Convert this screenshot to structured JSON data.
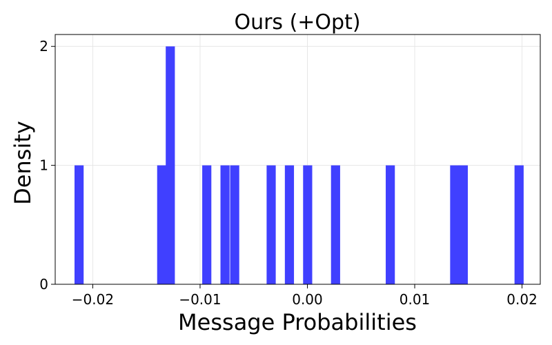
{
  "chart_data": {
    "type": "bar",
    "title": "Ours (+Opt)",
    "xlabel": "Message Probabilities",
    "ylabel": "Density",
    "xlim": [
      -0.0235,
      0.0217
    ],
    "ylim": [
      0,
      2.1
    ],
    "x_ticks": [
      "−0.02",
      "−0.01",
      "0.00",
      "0.01",
      "0.02"
    ],
    "x_tick_values": [
      -0.02,
      -0.01,
      0.0,
      0.01,
      0.02
    ],
    "y_ticks": [
      "0",
      "1",
      "2"
    ],
    "y_tick_values": [
      0,
      1,
      2
    ],
    "grid": true,
    "bar_color": "#4040ff",
    "bin_width": 0.00085,
    "bars": [
      {
        "x": -0.0217,
        "height": 1
      },
      {
        "x": -0.014,
        "height": 1
      },
      {
        "x": -0.0132,
        "height": 2
      },
      {
        "x": -0.0098,
        "height": 1
      },
      {
        "x": -0.0081,
        "height": 1
      },
      {
        "x": -0.0072,
        "height": 1
      },
      {
        "x": -0.0038,
        "height": 1
      },
      {
        "x": -0.0021,
        "height": 1
      },
      {
        "x": -0.0004,
        "height": 1
      },
      {
        "x": 0.0022,
        "height": 1
      },
      {
        "x": 0.0073,
        "height": 1
      },
      {
        "x": 0.0133,
        "height": 1
      },
      {
        "x": 0.0141,
        "height": 1
      },
      {
        "x": 0.0193,
        "height": 1
      }
    ]
  }
}
